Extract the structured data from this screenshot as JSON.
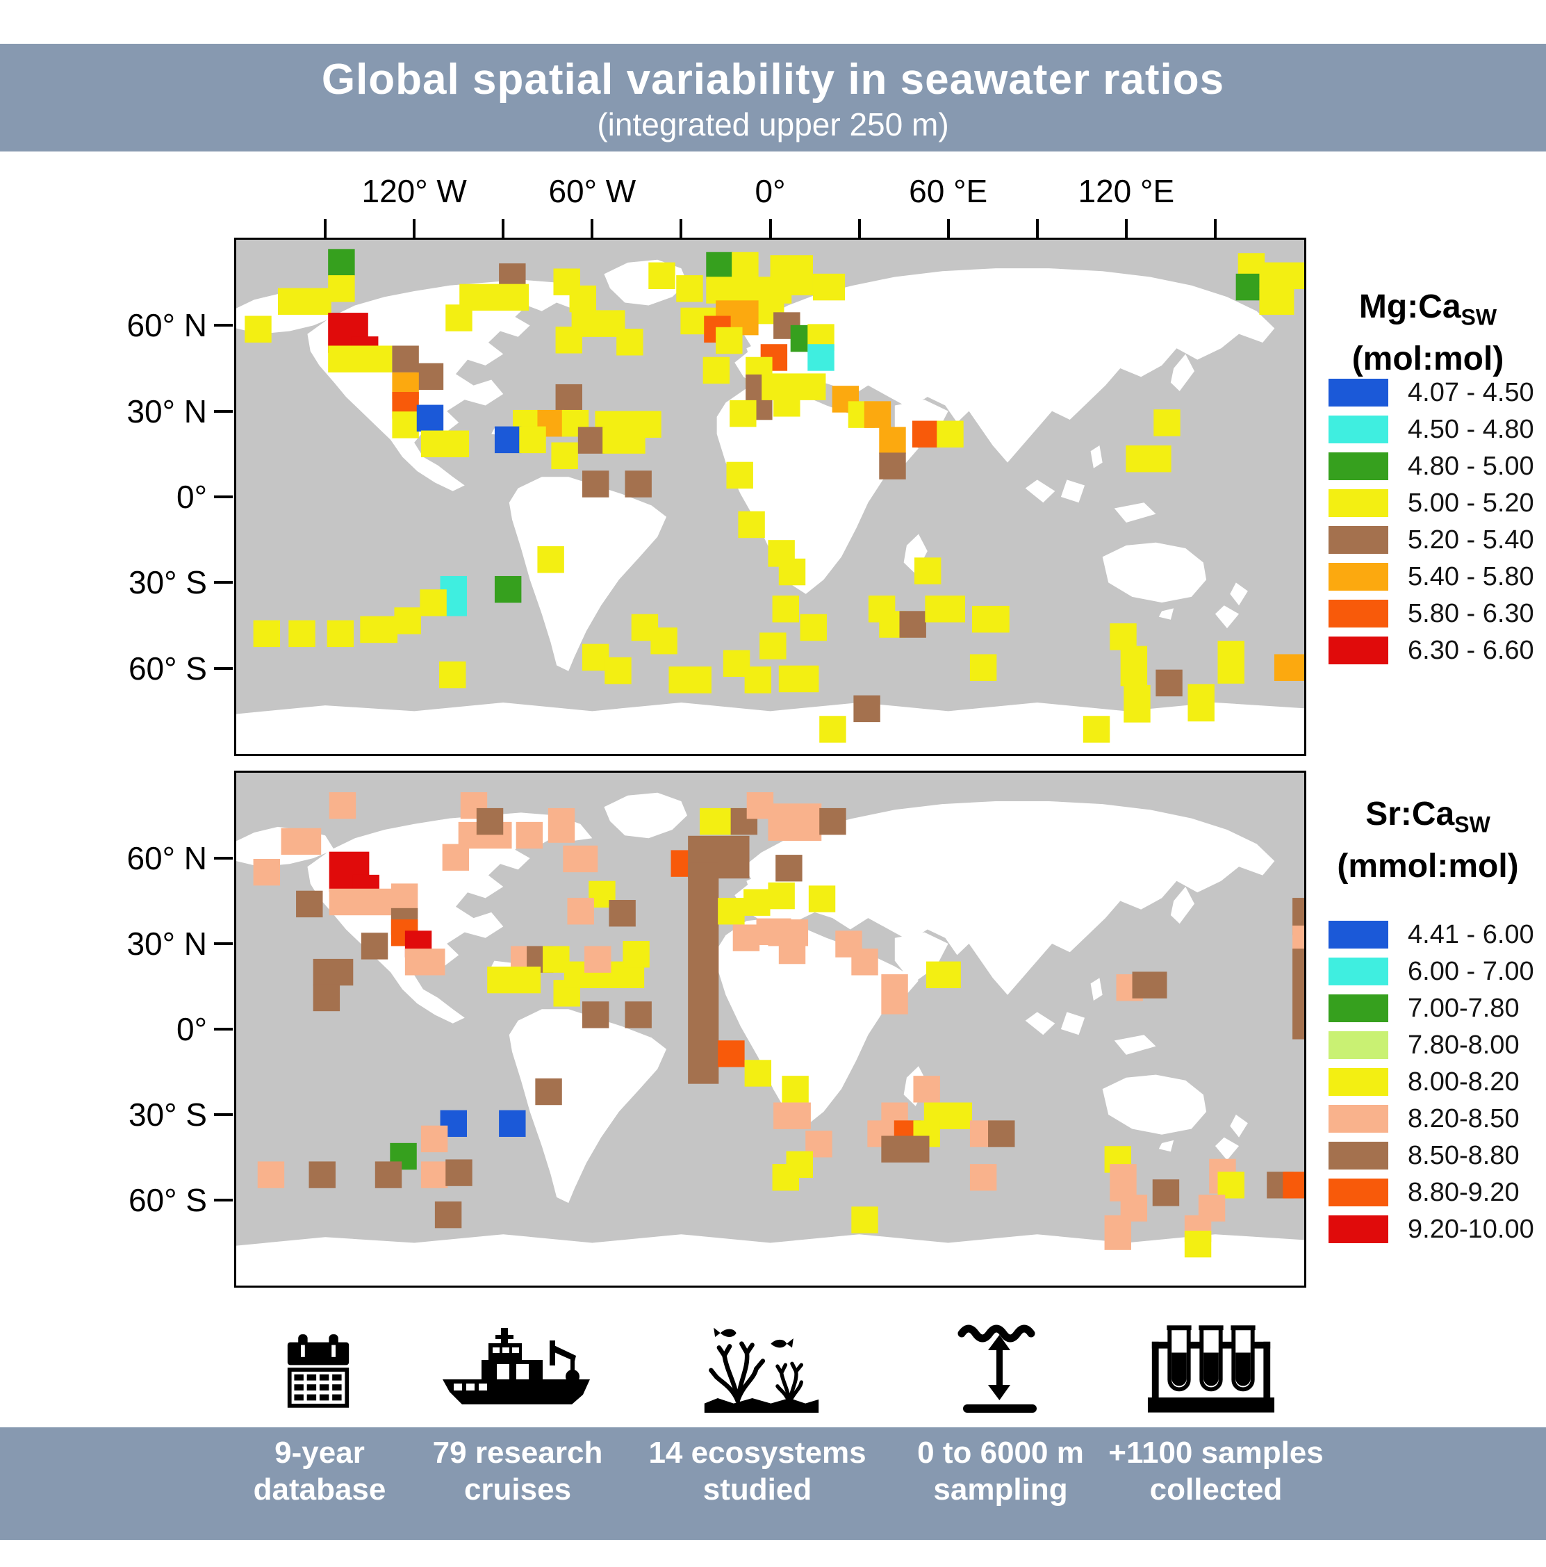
{
  "banner": {
    "title": "Global spatial variability in seawater ratios",
    "subtitle": "(integrated upper 250 m)",
    "bg": "#8799b0"
  },
  "colors": {
    "ocean": "#c5c5c5",
    "land": "#ffffff",
    "map_border": "#000000"
  },
  "palette": {
    "B": "#1b59d8",
    "C": "#3feee0",
    "G": "#36a01e",
    "LG": "#c9f173",
    "Y": "#f3ef12",
    "S": "#f9b28c",
    "Br": "#a4714e",
    "O": "#fca90f",
    "OR": "#f85a0a",
    "R": "#e00b0b"
  },
  "axes": {
    "lon_labels": [
      {
        "lon": -120,
        "text": "120° W"
      },
      {
        "lon": -60,
        "text": "60° W"
      },
      {
        "lon": 0,
        "text": "0°"
      },
      {
        "lon": 60,
        "text": "60 °E"
      },
      {
        "lon": 120,
        "text": "120 °E"
      }
    ],
    "lat_labels": [
      {
        "lat": 60,
        "text": "60° N"
      },
      {
        "lat": 30,
        "text": "30° N"
      },
      {
        "lat": 0,
        "text": "0°"
      },
      {
        "lat": -30,
        "text": "30° S"
      },
      {
        "lat": -60,
        "text": "60° S"
      }
    ]
  },
  "maps": {
    "mgca": {
      "title_main": "Mg:Ca",
      "title_sub": "SW",
      "title_unit": "(mol:mol)",
      "legend": [
        {
          "key": "B",
          "label": "4.07 - 4.50"
        },
        {
          "key": "C",
          "label": "4.50 - 4.80"
        },
        {
          "key": "G",
          "label": "4.80 - 5.00"
        },
        {
          "key": "Y",
          "label": "5.00 - 5.20"
        },
        {
          "key": "Br",
          "label": "5.20 - 5.40"
        },
        {
          "key": "O",
          "label": "5.40 - 5.80"
        },
        {
          "key": "OR",
          "label": "5.80 - 6.30"
        },
        {
          "key": "R",
          "label": "6.30 - 6.60"
        }
      ],
      "squares": [
        [
          8.6,
          1.8,
          "G"
        ],
        [
          8.6,
          6.9,
          "Y"
        ],
        [
          3.9,
          9.4,
          "Y",
          2
        ],
        [
          0.8,
          14.8,
          "Y"
        ],
        [
          8.6,
          14.2,
          "R",
          1.5,
          1.5
        ],
        [
          10.8,
          18.8,
          "R"
        ],
        [
          8.6,
          20.6,
          "Y",
          2.4
        ],
        [
          14.6,
          20.6,
          "Br"
        ],
        [
          16.9,
          24.0,
          "Br"
        ],
        [
          14.6,
          25.8,
          "O"
        ],
        [
          14.6,
          29.6,
          "OR"
        ],
        [
          14.6,
          33.4,
          "Y"
        ],
        [
          16.9,
          32.1,
          "B"
        ],
        [
          17.3,
          37.1,
          "Y",
          1.8
        ],
        [
          24.6,
          4.6,
          "Br"
        ],
        [
          20.9,
          8.6,
          "Y",
          2.6
        ],
        [
          19.6,
          12.6,
          "Y"
        ],
        [
          29.7,
          5.6,
          "Y"
        ],
        [
          31.2,
          8.9,
          "Y"
        ],
        [
          38.6,
          4.4,
          "Y"
        ],
        [
          41.2,
          6.9,
          "Y"
        ],
        [
          31.4,
          13.7,
          "Y",
          2
        ],
        [
          29.9,
          16.9,
          "Y"
        ],
        [
          35.6,
          17.3,
          "Y"
        ],
        [
          41.6,
          13.2,
          "Y",
          1.4
        ],
        [
          29.9,
          28.1,
          "Br"
        ],
        [
          25.9,
          33.1,
          "Y"
        ],
        [
          28.2,
          33.1,
          "O"
        ],
        [
          30.5,
          33.1,
          "Y"
        ],
        [
          24.2,
          36.3,
          "B"
        ],
        [
          26.5,
          36.3,
          "Y"
        ],
        [
          29.5,
          39.4,
          "Y"
        ],
        [
          33.6,
          33.3,
          "Y",
          2.2
        ],
        [
          32.0,
          36.4,
          "Br"
        ],
        [
          34.3,
          36.4,
          "Y",
          1.6
        ],
        [
          37.3,
          33.3,
          "Y"
        ],
        [
          32.4,
          44.9,
          "Br"
        ],
        [
          36.4,
          44.9,
          "Br"
        ],
        [
          28.2,
          59.6,
          "Y"
        ],
        [
          19.1,
          65.4,
          "C",
          1,
          1.5
        ],
        [
          17.2,
          68.0,
          "Y"
        ],
        [
          24.2,
          65.4,
          "G"
        ],
        [
          1.6,
          74.0,
          "Y"
        ],
        [
          4.9,
          74.0,
          "Y"
        ],
        [
          8.5,
          74.0,
          "Y"
        ],
        [
          11.6,
          73.2,
          "Y",
          1.4
        ],
        [
          14.8,
          71.5,
          "Y"
        ],
        [
          19.0,
          82.0,
          "Y"
        ],
        [
          32.4,
          78.6,
          "Y"
        ],
        [
          34.5,
          81.2,
          "Y"
        ],
        [
          37.0,
          72.8,
          "Y"
        ],
        [
          38.8,
          75.4,
          "Y"
        ],
        [
          40.5,
          83.0,
          "Y",
          1.6
        ],
        [
          45.6,
          79.8,
          "Y"
        ],
        [
          47.6,
          83.0,
          "Y"
        ],
        [
          44.0,
          2.4,
          "G"
        ],
        [
          46.4,
          2.4,
          "Y"
        ],
        [
          44.0,
          7.2,
          "Y",
          3.2
        ],
        [
          50.0,
          3.0,
          "Y",
          1.6,
          1.5
        ],
        [
          54.0,
          6.6,
          "Y",
          1.2
        ],
        [
          48.8,
          11.2,
          "Y"
        ],
        [
          44.9,
          11.8,
          "O",
          1.6,
          1.3
        ],
        [
          43.8,
          14.8,
          "OR"
        ],
        [
          44.9,
          17.0,
          "Y"
        ],
        [
          50.3,
          14.1,
          "Br"
        ],
        [
          51.9,
          16.6,
          "G",
          1.2
        ],
        [
          53.5,
          16.4,
          "Y"
        ],
        [
          53.5,
          20.3,
          "C"
        ],
        [
          49.1,
          20.3,
          "OR"
        ],
        [
          43.7,
          22.8,
          "Y"
        ],
        [
          47.7,
          22.8,
          "Y"
        ],
        [
          47.7,
          26.2,
          "Br",
          1,
          1.7
        ],
        [
          49.2,
          26.0,
          "Y",
          2.4
        ],
        [
          50.3,
          29.2,
          "Y"
        ],
        [
          46.2,
          31.2,
          "Y"
        ],
        [
          55.8,
          28.4,
          "O"
        ],
        [
          57.3,
          31.4,
          "Y"
        ],
        [
          58.8,
          31.4,
          "O"
        ],
        [
          60.2,
          36.4,
          "O"
        ],
        [
          60.2,
          41.4,
          "Br"
        ],
        [
          63.3,
          35.2,
          "OR"
        ],
        [
          65.6,
          35.2,
          "Y"
        ],
        [
          45.9,
          43.2,
          "Y"
        ],
        [
          47.0,
          52.8,
          "Y"
        ],
        [
          49.8,
          58.4,
          "Y"
        ],
        [
          50.8,
          62.0,
          "Y"
        ],
        [
          50.2,
          69.2,
          "Y"
        ],
        [
          52.8,
          72.8,
          "Y"
        ],
        [
          49.0,
          76.4,
          "Y"
        ],
        [
          50.8,
          82.8,
          "Y",
          1.5
        ],
        [
          54.6,
          92.6,
          "Y"
        ],
        [
          79.3,
          92.6,
          "Y"
        ],
        [
          63.5,
          61.8,
          "Y"
        ],
        [
          59.2,
          69.2,
          "Y"
        ],
        [
          60.2,
          72.2,
          "Y"
        ],
        [
          62.1,
          72.2,
          "Br"
        ],
        [
          64.5,
          69.2,
          "Y",
          1.5
        ],
        [
          68.9,
          71.2,
          "Y",
          1.4
        ],
        [
          68.7,
          80.6,
          "Y"
        ],
        [
          57.8,
          88.6,
          "Br"
        ],
        [
          93.8,
          2.6,
          "Y"
        ],
        [
          93.6,
          6.6,
          "G"
        ],
        [
          95.8,
          4.4,
          "Y",
          1.7
        ],
        [
          95.8,
          9.4,
          "Y",
          1.3
        ],
        [
          85.9,
          33.0,
          "Y"
        ],
        [
          83.3,
          40.0,
          "Y",
          1.7
        ],
        [
          81.8,
          74.6,
          "Y"
        ],
        [
          82.8,
          79.0,
          "Y",
          1,
          1.5
        ],
        [
          86.1,
          83.6,
          "Br"
        ],
        [
          91.9,
          78.0,
          "Y",
          1,
          1.6
        ],
        [
          97.2,
          80.6,
          "O",
          1.5
        ],
        [
          83.1,
          86.6,
          "Y",
          1,
          1.4
        ],
        [
          89.1,
          86.4,
          "Y",
          1,
          1.4
        ]
      ]
    },
    "srca": {
      "title_main": "Sr:Ca",
      "title_sub": "SW",
      "title_unit": "(mmol:mol)",
      "legend": [
        {
          "key": "B",
          "label": "4.41 - 6.00"
        },
        {
          "key": "C",
          "label": "6.00 - 7.00"
        },
        {
          "key": "G",
          "label": "7.00-7.80"
        },
        {
          "key": "LG",
          "label": "7.80-8.00"
        },
        {
          "key": "Y",
          "label": "8.00-8.20"
        },
        {
          "key": "S",
          "label": "8.20-8.50"
        },
        {
          "key": "Br",
          "label": "8.50-8.80"
        },
        {
          "key": "OR",
          "label": "8.80-9.20"
        },
        {
          "key": "R",
          "label": "9.20-10.00"
        }
      ],
      "squares": [
        [
          8.7,
          3.8,
          "S"
        ],
        [
          21.0,
          3.8,
          "S"
        ],
        [
          4.2,
          10.8,
          "S",
          1.5
        ],
        [
          1.6,
          16.8,
          "S"
        ],
        [
          5.6,
          23.0,
          "Br"
        ],
        [
          8.7,
          15.4,
          "R",
          1.5,
          1.5
        ],
        [
          10.9,
          19.9,
          "R"
        ],
        [
          8.7,
          22.6,
          "S",
          2.6
        ],
        [
          14.5,
          21.6,
          "S",
          1,
          1.3
        ],
        [
          14.5,
          26.4,
          "Br"
        ],
        [
          14.5,
          28.6,
          "OR"
        ],
        [
          15.8,
          30.8,
          "R"
        ],
        [
          11.7,
          31.2,
          "Br"
        ],
        [
          15.8,
          34.3,
          "S",
          1.5
        ],
        [
          7.2,
          36.3,
          "Br",
          1.5
        ],
        [
          7.2,
          41.3,
          "Br"
        ],
        [
          20.8,
          9.6,
          "S",
          2
        ],
        [
          19.3,
          13.9,
          "S"
        ],
        [
          22.5,
          6.9,
          "Br"
        ],
        [
          26.2,
          9.6,
          "S"
        ],
        [
          29.2,
          6.9,
          "S",
          1,
          1.3
        ],
        [
          30.6,
          14.2,
          "S",
          1.3
        ],
        [
          33.0,
          21.1,
          "Y"
        ],
        [
          31.0,
          24.4,
          "S"
        ],
        [
          34.9,
          24.8,
          "Br"
        ],
        [
          25.7,
          33.8,
          "S"
        ],
        [
          27.2,
          33.8,
          "Br"
        ],
        [
          28.7,
          33.8,
          "Y"
        ],
        [
          23.5,
          37.8,
          "Y",
          2
        ],
        [
          29.7,
          40.4,
          "Y"
        ],
        [
          30.7,
          36.8,
          "Y",
          3
        ],
        [
          32.6,
          33.8,
          "S"
        ],
        [
          36.2,
          32.8,
          "Y"
        ],
        [
          32.4,
          44.6,
          "Br"
        ],
        [
          36.4,
          44.6,
          "Br"
        ],
        [
          40.7,
          15.1,
          "OR"
        ],
        [
          42.3,
          12.3,
          "Br",
          2.3,
          1.6
        ],
        [
          42.3,
          17.5,
          "Br",
          1.15,
          8.3
        ],
        [
          45.1,
          52.2,
          "OR"
        ],
        [
          47.6,
          56.0,
          "Y"
        ],
        [
          43.4,
          6.9,
          "Y",
          1.5
        ],
        [
          46.3,
          6.9,
          "Br"
        ],
        [
          47.8,
          3.8,
          "S"
        ],
        [
          45.1,
          24.4,
          "Y"
        ],
        [
          47.5,
          22.7,
          "Y"
        ],
        [
          46.5,
          29.6,
          "S"
        ],
        [
          48.7,
          28.4,
          "S",
          1.3
        ],
        [
          28.0,
          59.6,
          "Br"
        ],
        [
          19.1,
          65.8,
          "B"
        ],
        [
          24.6,
          65.8,
          "B"
        ],
        [
          17.3,
          68.8,
          "S"
        ],
        [
          14.4,
          72.2,
          "G"
        ],
        [
          2.0,
          75.8,
          "S"
        ],
        [
          6.8,
          75.8,
          "Br"
        ],
        [
          13.0,
          75.8,
          "Br"
        ],
        [
          17.3,
          75.8,
          "S"
        ],
        [
          19.6,
          75.4,
          "Br"
        ],
        [
          18.6,
          83.6,
          "Br"
        ],
        [
          49.8,
          6.0,
          "S",
          2,
          1.4
        ],
        [
          54.6,
          6.9,
          "Br"
        ],
        [
          50.5,
          16.0,
          "Br"
        ],
        [
          49.8,
          21.4,
          "Y"
        ],
        [
          53.6,
          22.0,
          "Y"
        ],
        [
          49.8,
          28.6,
          "S",
          1.5
        ],
        [
          50.8,
          32.1,
          "S"
        ],
        [
          56.1,
          30.8,
          "S"
        ],
        [
          57.6,
          34.3,
          "S"
        ],
        [
          60.4,
          39.3,
          "S",
          1,
          1.5
        ],
        [
          64.6,
          36.8,
          "Y",
          1.3
        ],
        [
          82.4,
          39.3,
          "S"
        ],
        [
          83.9,
          38.8,
          "Br",
          1.3
        ],
        [
          63.4,
          59.1,
          "S"
        ],
        [
          51.1,
          59.1,
          "Y"
        ],
        [
          50.3,
          64.3,
          "S",
          1.4
        ],
        [
          60.4,
          64.3,
          "S"
        ],
        [
          64.4,
          64.3,
          "Y",
          1.8
        ],
        [
          59.1,
          67.8,
          "S"
        ],
        [
          61.6,
          67.8,
          "OR"
        ],
        [
          63.4,
          67.8,
          "Y"
        ],
        [
          60.4,
          70.8,
          "Br",
          1.8
        ],
        [
          68.7,
          67.8,
          "S"
        ],
        [
          70.4,
          67.8,
          "Br"
        ],
        [
          53.3,
          69.8,
          "S"
        ],
        [
          51.5,
          73.8,
          "Y"
        ],
        [
          50.2,
          76.3,
          "Y"
        ],
        [
          68.7,
          76.3,
          "S"
        ],
        [
          57.6,
          84.6,
          "Y"
        ],
        [
          81.3,
          72.8,
          "Y"
        ],
        [
          81.8,
          76.3,
          "S",
          1,
          1.4
        ],
        [
          82.8,
          82.3,
          "S"
        ],
        [
          85.8,
          79.3,
          "Br"
        ],
        [
          91.1,
          75.3,
          "S",
          1,
          1.3
        ],
        [
          91.9,
          77.8,
          "Y"
        ],
        [
          90.1,
          82.3,
          "S"
        ],
        [
          96.5,
          77.8,
          "Br"
        ],
        [
          98.0,
          77.8,
          "OR"
        ],
        [
          81.3,
          86.3,
          "S",
          1,
          1.3
        ],
        [
          88.8,
          86.3,
          "S"
        ],
        [
          88.8,
          89.3,
          "Y"
        ],
        [
          98.9,
          24.4,
          "Br",
          1.1,
          1.4
        ],
        [
          98.9,
          29.8,
          "S",
          1.1
        ],
        [
          98.9,
          34.3,
          "Br",
          1.1,
          3.4
        ]
      ]
    }
  },
  "footer": {
    "bg": "#8799b0",
    "items": [
      {
        "icon": "calendar-icon",
        "line1": "9-year",
        "line2": "database"
      },
      {
        "icon": "ship-icon",
        "line1": "79 research",
        "line2": "cruises"
      },
      {
        "icon": "ecosystem-icon",
        "line1": "14 ecosystems",
        "line2": "studied"
      },
      {
        "icon": "depth-icon",
        "line1": "0 to 6000 m",
        "line2": "sampling"
      },
      {
        "icon": "samples-icon",
        "line1": "+1100 samples",
        "line2": "collected"
      }
    ]
  }
}
